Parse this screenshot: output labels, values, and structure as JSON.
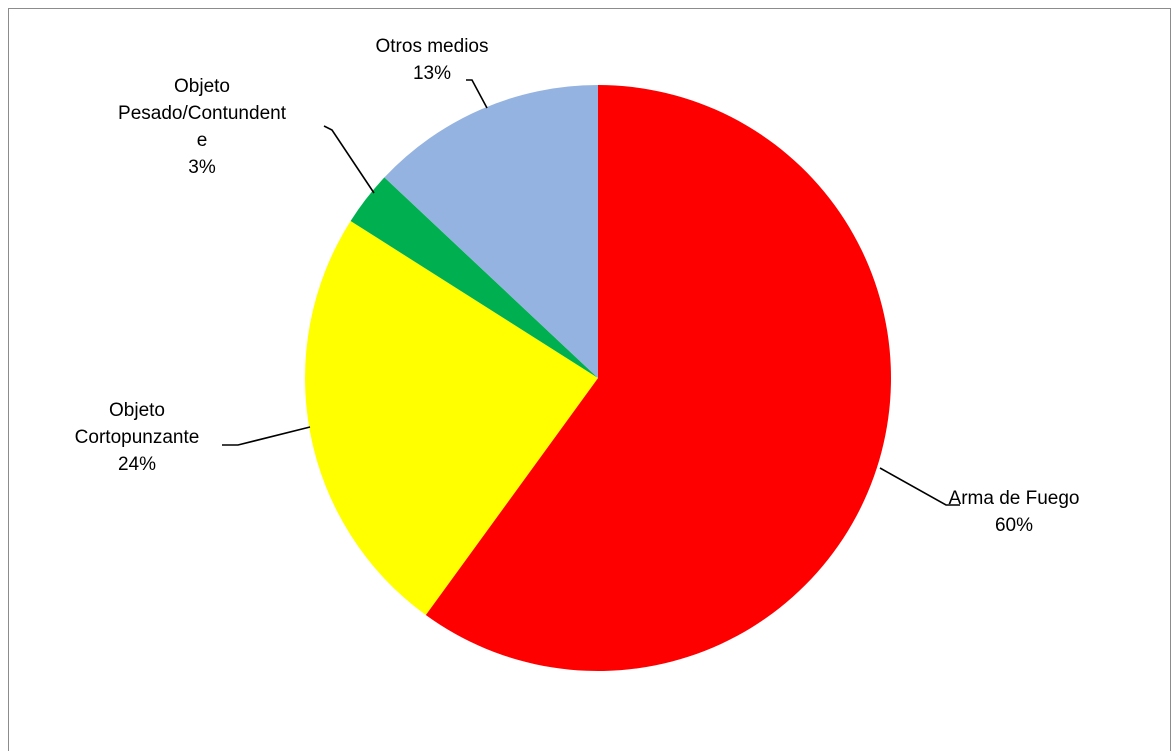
{
  "chart_data": {
    "type": "pie",
    "title": "",
    "start_angle_deg": 0,
    "direction": "clockwise",
    "slices": [
      {
        "label_lines": [
          "Arma de Fuego"
        ],
        "pct_label": "60%",
        "value": 60,
        "color": "#ff0000"
      },
      {
        "label_lines": [
          "Objeto",
          "Cortopunzante"
        ],
        "pct_label": "24%",
        "value": 24,
        "color": "#ffff00"
      },
      {
        "label_lines": [
          "Objeto",
          "Pesado/Contundent",
          "e"
        ],
        "pct_label": "3%",
        "value": 3,
        "color": "#00b050"
      },
      {
        "label_lines": [
          "Otros medios"
        ],
        "pct_label": "13%",
        "value": 13,
        "color": "#95b3e0"
      }
    ]
  }
}
